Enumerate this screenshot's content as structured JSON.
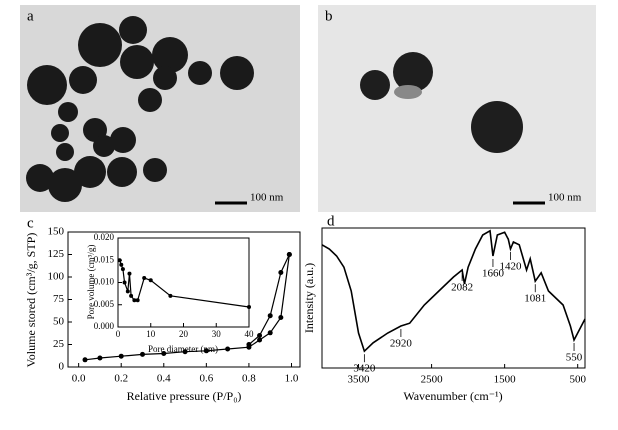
{
  "panels": {
    "labels": [
      "a",
      "b",
      "c",
      "d"
    ],
    "scale_bar": "100 nm"
  },
  "chart_data": [
    {
      "type": "line",
      "xlabel": "Relative pressure (P/P₀)",
      "ylabel": "Volume stored (cm³/g, STP)",
      "xlim": [
        -0.05,
        1.04
      ],
      "ylim": [
        0,
        150
      ],
      "xticks": [
        {
          "value": 0,
          "label": "0.0"
        },
        0.2,
        0.4,
        0.6,
        0.8,
        {
          "value": 1,
          "label": "1.0"
        }
      ],
      "yticks": [
        0,
        25,
        50,
        75,
        100,
        125,
        150
      ],
      "markers": true,
      "series": [
        {
          "color": "#000000",
          "x": [
            0.03,
            0.1,
            0.2,
            0.3,
            0.4,
            0.5,
            0.6,
            0.7,
            0.8,
            0.85,
            0.9,
            0.95,
            0.99
          ],
          "values": [
            8,
            10,
            12,
            14,
            15,
            17,
            18,
            20,
            22,
            30,
            38,
            55,
            125
          ]
        },
        {
          "color": "#000000",
          "x": [
            0.99,
            0.95,
            0.9,
            0.85,
            0.8
          ],
          "values": [
            125,
            105,
            57,
            35,
            25
          ]
        }
      ]
    },
    {
      "type": "line",
      "xlabel": "Pore diameter (nm)",
      "ylabel": "Pore volume (cm³/g)",
      "xlim": [
        0,
        40
      ],
      "ylim": [
        0,
        0.02
      ],
      "xticks": [
        0,
        10,
        20,
        30,
        40
      ],
      "yticks": [
        {
          "value": 0,
          "label": "0.000"
        },
        0.005,
        {
          "value": 0.01,
          "label": "0.010"
        },
        0.015,
        {
          "value": 0.02,
          "label": "0.020"
        }
      ],
      "markers": true,
      "series": [
        {
          "color": "#000000",
          "x": [
            0.5,
            1,
            1.5,
            2,
            3,
            3.5,
            4,
            5,
            6,
            8,
            10,
            16,
            40
          ],
          "values": [
            0.015,
            0.014,
            0.013,
            0.01,
            0.008,
            0.012,
            0.007,
            0.006,
            0.006,
            0.011,
            0.0105,
            0.007,
            0.0045
          ]
        }
      ]
    },
    {
      "type": "line",
      "xlabel": "Wavenumber (cm⁻¹)",
      "ylabel": "Intensity (a.u.)",
      "xlim": [
        4000,
        400
      ],
      "ylim": [
        0,
        100
      ],
      "xticks": [
        3500,
        2500,
        1500,
        500
      ],
      "markers": false,
      "series": [
        {
          "color": "#000000",
          "x": [
            4000,
            3900,
            3800,
            3700,
            3600,
            3500,
            3420,
            3300,
            3100,
            2920,
            2800,
            2600,
            2400,
            2200,
            2082,
            2050,
            2000,
            1900,
            1800,
            1700,
            1660,
            1600,
            1500,
            1450,
            1420,
            1380,
            1300,
            1200,
            1150,
            1081,
            1000,
            900,
            800,
            700,
            600,
            550,
            500,
            450,
            400
          ],
          "values": [
            88,
            85,
            80,
            72,
            55,
            25,
            12,
            18,
            25,
            30,
            32,
            45,
            55,
            65,
            70,
            60,
            72,
            85,
            95,
            98,
            80,
            95,
            97,
            92,
            85,
            90,
            88,
            70,
            78,
            62,
            68,
            55,
            50,
            45,
            30,
            20,
            25,
            30,
            35
          ]
        }
      ],
      "peak_labels": [
        3420,
        2920,
        2082,
        1660,
        1420,
        1081,
        550
      ]
    }
  ]
}
